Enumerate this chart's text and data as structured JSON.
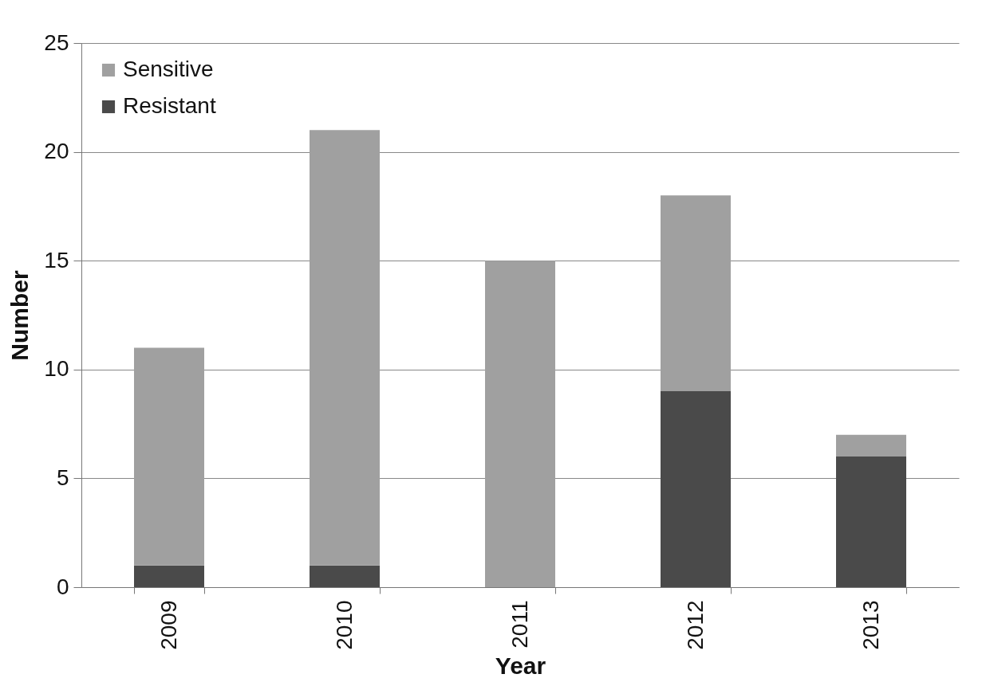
{
  "chart_data": {
    "type": "bar",
    "stacked": true,
    "xlabel": "Year",
    "ylabel": "Number",
    "categories": [
      "2009",
      "2010",
      "2011",
      "2012",
      "2013"
    ],
    "series": [
      {
        "name": "Resistant",
        "color": "#4a4a4a",
        "values": [
          1,
          1,
          0,
          9,
          6
        ]
      },
      {
        "name": "Sensitive",
        "color": "#a0a0a0",
        "values": [
          10,
          20,
          15,
          9,
          1
        ]
      }
    ],
    "ylim": [
      0,
      25
    ],
    "yticks": [
      0,
      5,
      10,
      15,
      20,
      25
    ],
    "grid": "y",
    "legend": "top left"
  }
}
